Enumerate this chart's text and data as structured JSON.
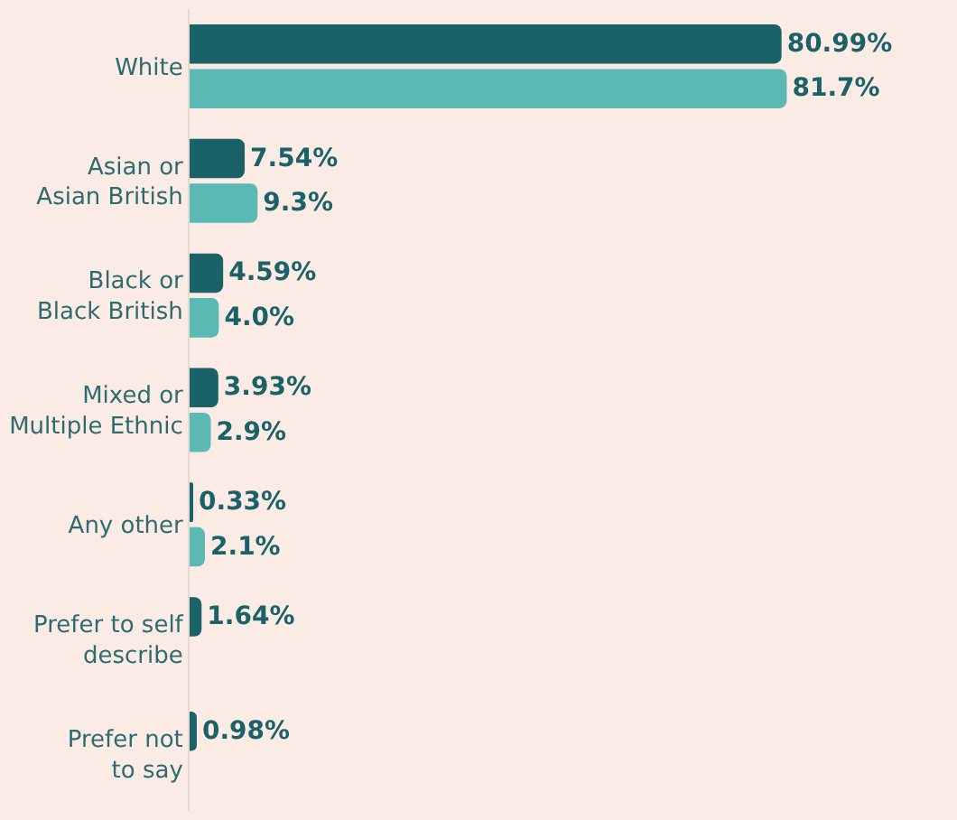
{
  "chart_data": {
    "type": "bar",
    "orientation": "horizontal",
    "categories": [
      "White",
      "Asian or\nAsian British",
      "Black or\nBlack British",
      "Mixed or\nMultiple Ethnic",
      "Any other",
      "Prefer to self\ndescribe",
      "Prefer not\nto say"
    ],
    "series": [
      {
        "color": "#1b6168",
        "values": [
          80.99,
          7.54,
          4.59,
          3.93,
          0.33,
          1.64,
          0.98
        ],
        "value_labels": [
          "80.99%",
          "7.54%",
          "4.59%",
          "3.93%",
          "0.33%",
          "1.64%",
          "0.98%"
        ]
      },
      {
        "color": "#5ab8b5",
        "values": [
          81.7,
          9.3,
          4.0,
          2.9,
          2.1,
          null,
          null
        ],
        "value_labels": [
          "81.7%",
          "9.3%",
          "4.0%",
          "2.9%",
          "2.1%",
          null,
          null
        ]
      }
    ],
    "grid": false
  }
}
